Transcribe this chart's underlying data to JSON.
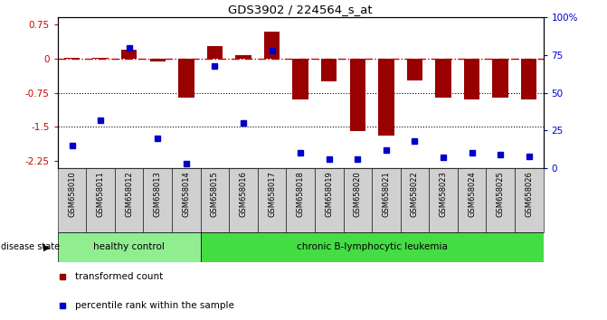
{
  "title": "GDS3902 / 224564_s_at",
  "samples": [
    "GSM658010",
    "GSM658011",
    "GSM658012",
    "GSM658013",
    "GSM658014",
    "GSM658015",
    "GSM658016",
    "GSM658017",
    "GSM658018",
    "GSM658019",
    "GSM658020",
    "GSM658021",
    "GSM658022",
    "GSM658023",
    "GSM658024",
    "GSM658025",
    "GSM658026"
  ],
  "bar_values": [
    0.02,
    0.02,
    0.2,
    -0.07,
    -0.85,
    0.28,
    0.08,
    0.6,
    -0.9,
    -0.5,
    -1.58,
    -1.68,
    -0.48,
    -0.85,
    -0.9,
    -0.85,
    -0.9
  ],
  "percentile_values": [
    15,
    32,
    80,
    20,
    3,
    68,
    30,
    78,
    10,
    6,
    6,
    12,
    18,
    7,
    10,
    9,
    8
  ],
  "group_labels": [
    "healthy control",
    "chronic B-lymphocytic leukemia"
  ],
  "group_counts": [
    5,
    12
  ],
  "group_colors": [
    "#90ee90",
    "#44dd44"
  ],
  "bar_color": "#990000",
  "dot_color": "#0000cc",
  "dashed_line_color": "#cc0000",
  "ylim_left": [
    -2.4,
    0.9
  ],
  "ylim_right": [
    0,
    100
  ],
  "yticks_left": [
    0.75,
    0.0,
    -0.75,
    -1.5,
    -2.25
  ],
  "yticks_right": [
    100,
    75,
    50,
    25,
    0
  ],
  "ytick_labels_left": [
    "0.75",
    "0",
    "-0.75",
    "-1.5",
    "-2.25"
  ],
  "ytick_labels_right": [
    "100%",
    "75",
    "50",
    "25",
    "0"
  ],
  "disease_state_label": "disease state",
  "legend_bar_label": "transformed count",
  "legend_dot_label": "percentile rank within the sample",
  "background_color": "#ffffff",
  "plot_bg_color": "#ffffff"
}
